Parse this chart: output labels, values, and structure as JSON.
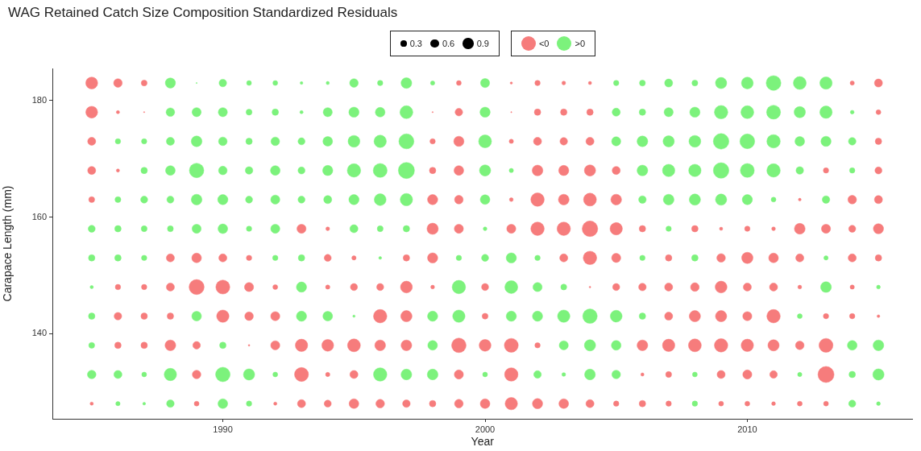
{
  "chart_data": {
    "type": "bubble",
    "title": "WAG Retained Catch Size Composition Standardized Residuals",
    "xlabel": "Year",
    "ylabel": "Carapace Length (mm)",
    "xlim": [
      1983.5,
      2016.3
    ],
    "ylim": [
      125.4,
      185.5
    ],
    "xticks": [
      1990,
      2000,
      2010
    ],
    "yticks": [
      140,
      160,
      180
    ],
    "size_legend": [
      0.3,
      0.6,
      0.9
    ],
    "legend": "top",
    "grid": false,
    "series": [
      {
        "name": "<0",
        "color": "#f67c7c",
        "x": [
          1985,
          1986,
          1987,
          1999,
          2001,
          2002,
          2003,
          2004,
          2014,
          2015,
          1985,
          1986,
          1987,
          1998,
          1999,
          2001,
          2002,
          2003,
          2004,
          2015,
          1985,
          1998,
          1999,
          2001,
          2002,
          2003,
          2004,
          2015,
          1985,
          1986,
          1998,
          1999,
          2002,
          2003,
          2004,
          2005,
          2013,
          2015,
          1985,
          1998,
          1999,
          2001,
          2002,
          2003,
          2004,
          2005,
          2012,
          2014,
          2015,
          1993,
          1994,
          1998,
          1999,
          2001,
          2002,
          2003,
          2004,
          2005,
          2006,
          2008,
          2009,
          2010,
          2011,
          2012,
          2013,
          2014,
          2015,
          1988,
          1989,
          1990,
          1991,
          1994,
          1995,
          1997,
          1998,
          2003,
          2004,
          2005,
          2007,
          2009,
          2010,
          2011,
          2012,
          2014,
          2015,
          1986,
          1987,
          1988,
          1989,
          1990,
          1991,
          1992,
          1994,
          1995,
          1996,
          1997,
          1998,
          2000,
          2004,
          2005,
          2006,
          2007,
          2008,
          2009,
          2010,
          2011,
          2012,
          2014,
          1986,
          1987,
          1988,
          1990,
          1991,
          1992,
          1996,
          1997,
          2000,
          2007,
          2008,
          2009,
          2010,
          2011,
          2013,
          2014,
          2015,
          1986,
          1987,
          1988,
          1989,
          1991,
          1992,
          1993,
          1994,
          1995,
          1996,
          1997,
          1999,
          2000,
          2001,
          2002,
          2006,
          2007,
          2008,
          2009,
          2010,
          2011,
          2012,
          2013,
          1989,
          1993,
          1994,
          1995,
          1999,
          2001,
          2006,
          2007,
          2009,
          2010,
          2011,
          2013,
          1985,
          1989,
          1992,
          1993,
          1994,
          1995,
          1996,
          1997,
          1998,
          1999,
          2000,
          2001,
          2002,
          2003,
          2004,
          2005,
          2006,
          2007,
          2009,
          2010,
          2011,
          2012,
          2013
        ],
        "values": [
          183,
          183,
          183,
          183,
          183,
          183,
          183,
          183,
          183,
          183,
          178,
          178,
          178,
          178,
          178,
          178,
          178,
          178,
          178,
          178,
          173,
          173,
          173,
          173,
          173,
          173,
          173,
          173,
          168,
          168,
          168,
          168,
          168,
          168,
          168,
          168,
          168,
          168,
          163,
          163,
          163,
          163,
          163,
          163,
          163,
          163,
          163,
          163,
          163,
          158,
          158,
          158,
          158,
          158,
          158,
          158,
          158,
          158,
          158,
          158,
          158,
          158,
          158,
          158,
          158,
          158,
          158,
          153,
          153,
          153,
          153,
          153,
          153,
          153,
          153,
          153,
          153,
          153,
          153,
          153,
          153,
          153,
          153,
          153,
          153,
          148,
          148,
          148,
          148,
          148,
          148,
          148,
          148,
          148,
          148,
          148,
          148,
          148,
          148,
          148,
          148,
          148,
          148,
          148,
          148,
          148,
          148,
          148,
          143,
          143,
          143,
          143,
          143,
          143,
          143,
          143,
          143,
          143,
          143,
          143,
          143,
          143,
          143,
          143,
          143,
          138,
          138,
          138,
          138,
          138,
          138,
          138,
          138,
          138,
          138,
          138,
          138,
          138,
          138,
          138,
          138,
          138,
          138,
          138,
          138,
          138,
          138,
          138,
          133,
          133,
          133,
          133,
          133,
          133,
          133,
          133,
          133,
          133,
          133,
          133,
          128,
          128,
          128,
          128,
          128,
          128,
          128,
          128,
          128,
          128,
          128,
          128,
          128,
          128,
          128,
          128,
          128,
          128,
          128,
          128,
          128,
          128,
          128
        ],
        "sizes": [
          1.1,
          0.57,
          0.27,
          0.18,
          0.04,
          0.22,
          0.11,
          0.08,
          0.14,
          0.5,
          1.08,
          0.08,
          0.01,
          0.01,
          0.44,
          0.01,
          0.32,
          0.32,
          0.32,
          0.18,
          0.5,
          0.22,
          0.8,
          0.14,
          0.5,
          0.44,
          0.5,
          0.32,
          0.5,
          0.08,
          0.32,
          0.72,
          0.89,
          0.8,
          0.98,
          0.5,
          0.22,
          0.38,
          0.27,
          0.8,
          0.57,
          0.11,
          1.39,
          0.89,
          1.28,
          0.89,
          0.06,
          0.57,
          0.5,
          0.64,
          0.11,
          0.98,
          0.64,
          0.64,
          1.39,
          1.39,
          1.87,
          1.18,
          0.32,
          0.32,
          0.08,
          0.22,
          0.11,
          0.89,
          0.64,
          0.38,
          0.8,
          0.5,
          0.72,
          0.5,
          0.22,
          0.38,
          0.14,
          0.32,
          0.8,
          0.5,
          1.39,
          0.64,
          0.32,
          0.57,
          0.98,
          0.72,
          0.5,
          0.5,
          0.32,
          0.22,
          0.22,
          0.5,
          1.74,
          1.5,
          0.64,
          0.18,
          0.14,
          0.38,
          0.38,
          1.08,
          0.11,
          0.38,
          0.02,
          0.38,
          0.44,
          0.5,
          0.57,
          1.08,
          0.5,
          0.5,
          0.11,
          0.14,
          0.44,
          0.32,
          0.32,
          1.18,
          0.57,
          0.64,
          1.39,
          0.98,
          0.27,
          0.5,
          0.98,
          0.98,
          0.64,
          1.39,
          0.22,
          0.22,
          0.06,
          0.32,
          0.32,
          0.89,
          0.44,
          0.02,
          0.64,
          1.18,
          1.08,
          1.28,
          0.89,
          0.89,
          1.62,
          1.08,
          1.5,
          0.22,
          0.89,
          1.18,
          1.28,
          1.39,
          1.18,
          0.98,
          0.57,
          1.5,
          0.57,
          1.5,
          0.14,
          0.5,
          0.64,
          1.39,
          0.08,
          0.27,
          0.5,
          0.64,
          0.44,
          2.0,
          0.08,
          0.18,
          0.08,
          0.5,
          0.38,
          0.72,
          0.57,
          0.44,
          0.32,
          0.57,
          0.72,
          1.18,
          0.8,
          0.72,
          0.5,
          0.22,
          0.32,
          0.22,
          0.18,
          0.18,
          0.11,
          0.18,
          0.18
        ]
      },
      {
        "name": ">0",
        "color": "#7cf27c",
        "x": [
          1988,
          1989,
          1990,
          1991,
          1992,
          1993,
          1994,
          1995,
          1996,
          1997,
          1998,
          2000,
          2005,
          2006,
          2007,
          2008,
          2009,
          2010,
          2011,
          2012,
          2013,
          1988,
          1989,
          1990,
          1991,
          1992,
          1993,
          1994,
          1995,
          1996,
          1997,
          2000,
          2005,
          2006,
          2007,
          2008,
          2009,
          2010,
          2011,
          2012,
          2013,
          2014,
          1986,
          1987,
          1988,
          1989,
          1990,
          1991,
          1992,
          1993,
          1994,
          1995,
          1996,
          1997,
          2000,
          2005,
          2006,
          2007,
          2008,
          2009,
          2010,
          2011,
          2012,
          2013,
          2014,
          1987,
          1988,
          1989,
          1990,
          1991,
          1992,
          1993,
          1994,
          1995,
          1996,
          1997,
          2000,
          2001,
          2006,
          2007,
          2008,
          2009,
          2010,
          2011,
          2012,
          2014,
          1986,
          1987,
          1988,
          1989,
          1990,
          1991,
          1992,
          1993,
          1994,
          1995,
          1996,
          1997,
          2000,
          2006,
          2007,
          2008,
          2009,
          2010,
          2011,
          2013,
          1985,
          1986,
          1987,
          1988,
          1989,
          1990,
          1991,
          1992,
          1995,
          1996,
          1997,
          2000,
          2007,
          1985,
          1986,
          1987,
          1992,
          1993,
          1996,
          1999,
          2000,
          2001,
          2002,
          2006,
          2008,
          2013,
          1985,
          1993,
          1999,
          2001,
          2002,
          2003,
          2013,
          2015,
          1985,
          1989,
          1993,
          1994,
          1995,
          1998,
          1999,
          2001,
          2002,
          2003,
          2004,
          2005,
          2006,
          2012,
          1985,
          1990,
          1998,
          2003,
          2004,
          2005,
          2014,
          2015,
          1985,
          1986,
          1987,
          1988,
          1990,
          1991,
          1992,
          1996,
          1997,
          1998,
          2000,
          2002,
          2003,
          2004,
          2005,
          2008,
          2012,
          2014,
          2015,
          1986,
          1987,
          1988,
          1990,
          1991,
          2008,
          2014,
          2015
        ],
        "values": [
          183,
          183,
          183,
          183,
          183,
          183,
          183,
          183,
          183,
          183,
          183,
          183,
          183,
          183,
          183,
          183,
          183,
          183,
          183,
          183,
          183,
          178,
          178,
          178,
          178,
          178,
          178,
          178,
          178,
          178,
          178,
          178,
          178,
          178,
          178,
          178,
          178,
          178,
          178,
          178,
          178,
          178,
          173,
          173,
          173,
          173,
          173,
          173,
          173,
          173,
          173,
          173,
          173,
          173,
          173,
          173,
          173,
          173,
          173,
          173,
          173,
          173,
          173,
          173,
          173,
          168,
          168,
          168,
          168,
          168,
          168,
          168,
          168,
          168,
          168,
          168,
          168,
          168,
          168,
          168,
          168,
          168,
          168,
          168,
          168,
          168,
          163,
          163,
          163,
          163,
          163,
          163,
          163,
          163,
          163,
          163,
          163,
          163,
          163,
          163,
          163,
          163,
          163,
          163,
          163,
          163,
          158,
          158,
          158,
          158,
          158,
          158,
          158,
          158,
          158,
          158,
          158,
          158,
          158,
          153,
          153,
          153,
          153,
          153,
          153,
          153,
          153,
          153,
          153,
          153,
          153,
          153,
          148,
          148,
          148,
          148,
          148,
          148,
          148,
          148,
          143,
          143,
          143,
          143,
          143,
          143,
          143,
          143,
          143,
          143,
          143,
          143,
          143,
          143,
          138,
          138,
          138,
          138,
          138,
          138,
          138,
          138,
          133,
          133,
          133,
          133,
          133,
          133,
          133,
          133,
          133,
          133,
          133,
          133,
          133,
          133,
          133,
          133,
          133,
          133,
          133,
          128,
          128,
          128,
          128,
          128,
          128,
          128,
          128
        ],
        "sizes": [
          0.8,
          0.01,
          0.44,
          0.18,
          0.18,
          0.06,
          0.08,
          0.57,
          0.22,
          0.89,
          0.14,
          0.64,
          0.22,
          0.27,
          0.5,
          0.27,
          0.98,
          1.08,
          1.68,
          1.28,
          1.18,
          0.57,
          0.64,
          0.64,
          0.27,
          0.32,
          0.08,
          0.64,
          0.8,
          0.72,
          1.28,
          0.8,
          0.5,
          0.32,
          0.64,
          0.8,
          1.39,
          1.28,
          1.5,
          0.98,
          1.18,
          0.11,
          0.22,
          0.22,
          0.5,
          0.89,
          0.57,
          0.32,
          0.57,
          0.38,
          0.72,
          1.08,
          1.18,
          1.74,
          1.28,
          0.64,
          0.89,
          0.98,
          1.08,
          1.87,
          1.68,
          1.39,
          0.72,
          0.8,
          0.44,
          0.32,
          0.72,
          1.62,
          0.57,
          0.44,
          0.72,
          0.38,
          0.8,
          1.39,
          1.5,
          2.0,
          0.98,
          0.14,
          0.89,
          1.18,
          1.18,
          1.87,
          1.5,
          1.39,
          0.44,
          0.22,
          0.27,
          0.38,
          0.38,
          0.89,
          0.8,
          0.38,
          0.64,
          0.38,
          0.5,
          0.8,
          1.08,
          1.18,
          0.72,
          0.44,
          0.89,
          0.98,
          0.98,
          0.8,
          0.18,
          0.44,
          0.38,
          0.32,
          0.27,
          0.27,
          0.64,
          0.72,
          0.22,
          0.64,
          0.5,
          0.27,
          0.32,
          0.11,
          0.22,
          0.32,
          0.32,
          0.22,
          0.22,
          0.32,
          0.06,
          0.22,
          0.38,
          0.8,
          0.22,
          0.22,
          0.32,
          0.14,
          0.08,
          0.8,
          1.39,
          1.28,
          0.64,
          0.27,
          0.89,
          0.11,
          0.32,
          0.72,
          0.8,
          0.72,
          0.04,
          0.8,
          1.18,
          0.8,
          0.8,
          1.18,
          1.62,
          1.08,
          0.32,
          0.18,
          0.27,
          0.32,
          0.72,
          0.64,
          0.98,
          0.72,
          0.72,
          0.89,
          0.57,
          0.5,
          0.18,
          1.18,
          1.62,
          0.98,
          0.18,
          1.39,
          0.89,
          0.89,
          0.18,
          0.44,
          0.11,
          0.89,
          0.57,
          0.18,
          0.14,
          0.32,
          0.98,
          0.14,
          0.06,
          0.44,
          0.72,
          0.22,
          0.22,
          0.38,
          0.11
        ]
      }
    ]
  }
}
